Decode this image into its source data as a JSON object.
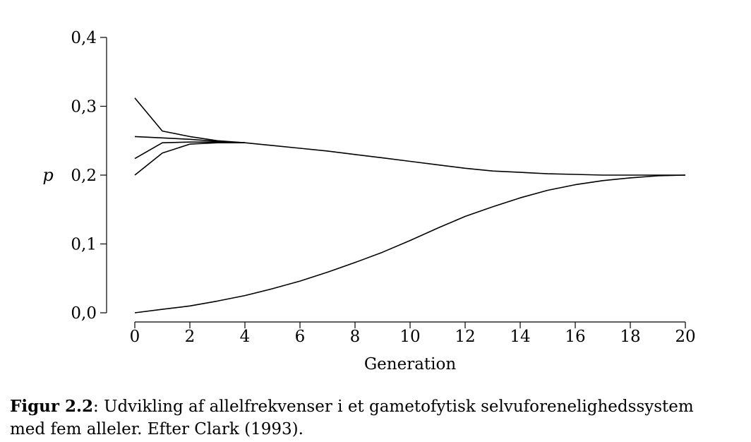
{
  "chart_data": {
    "type": "line",
    "title": "",
    "xlabel": "Generation",
    "ylabel": "p",
    "xlim": [
      0,
      20
    ],
    "ylim": [
      0,
      0.4
    ],
    "xticks": [
      0,
      2,
      4,
      6,
      8,
      10,
      12,
      14,
      16,
      18,
      20
    ],
    "xtick_labels": [
      "0",
      "2",
      "4",
      "6",
      "8",
      "10",
      "12",
      "14",
      "16",
      "18",
      "20"
    ],
    "yticks": [
      0,
      0.1,
      0.2,
      0.3,
      0.4
    ],
    "ytick_labels": [
      "0,0",
      "0,1",
      "0,2",
      "0,3",
      "0,4"
    ],
    "grid": false,
    "legend": "none",
    "series": [
      {
        "x": [
          0,
          1,
          2,
          3,
          4
        ],
        "y": [
          0.312,
          0.264,
          0.256,
          0.25,
          0.247
        ]
      },
      {
        "x": [
          0,
          1,
          2,
          3,
          4
        ],
        "y": [
          0.256,
          0.254,
          0.252,
          0.249,
          0.247
        ]
      },
      {
        "x": [
          0,
          1,
          2,
          3,
          4
        ],
        "y": [
          0.224,
          0.247,
          0.248,
          0.248,
          0.247
        ]
      },
      {
        "x": [
          0,
          1,
          2,
          3,
          4
        ],
        "y": [
          0.2,
          0.232,
          0.245,
          0.247,
          0.247
        ]
      },
      {
        "x": [
          4,
          5,
          6,
          7,
          8,
          9,
          10,
          11,
          12,
          13,
          14,
          15,
          16,
          17,
          18,
          19,
          20
        ],
        "y": [
          0.247,
          0.243,
          0.239,
          0.235,
          0.23,
          0.225,
          0.22,
          0.215,
          0.21,
          0.206,
          0.204,
          0.202,
          0.201,
          0.2,
          0.2,
          0.2,
          0.2
        ]
      },
      {
        "x": [
          0,
          1,
          2,
          3,
          4,
          5,
          6,
          7,
          8,
          9,
          10,
          11,
          12,
          13,
          14,
          15,
          16,
          17,
          18,
          19,
          20
        ],
        "y": [
          0,
          0.005,
          0.01,
          0.017,
          0.025,
          0.035,
          0.046,
          0.059,
          0.073,
          0.088,
          0.105,
          0.123,
          0.14,
          0.154,
          0.167,
          0.178,
          0.186,
          0.192,
          0.196,
          0.199,
          0.2
        ]
      }
    ]
  },
  "caption": {
    "label": "Figur 2.2",
    "text": ": Udvikling af allelfrekvenser i et gametofytisk selvuforenelighedssystem",
    "line2": "med fem alleler. Efter Clark (1993)."
  }
}
